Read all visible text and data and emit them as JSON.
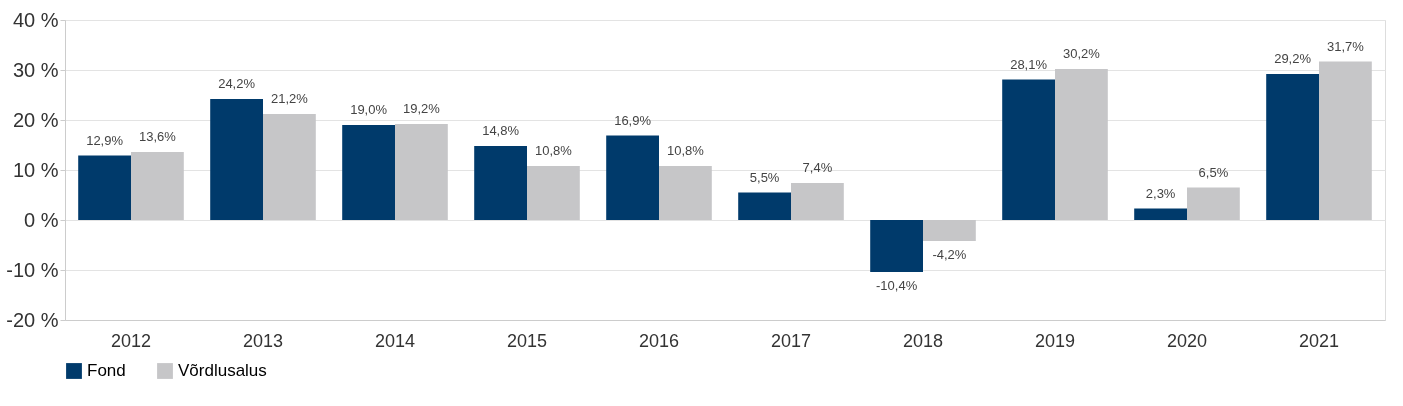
{
  "chart_data": {
    "type": "bar",
    "categories": [
      "2012",
      "2013",
      "2014",
      "2015",
      "2016",
      "2017",
      "2018",
      "2019",
      "2020",
      "2021"
    ],
    "series": [
      {
        "name": "Fond",
        "color": "#003a6b",
        "values": [
          12.9,
          24.2,
          19.0,
          14.8,
          16.9,
          5.5,
          -10.4,
          28.1,
          2.3,
          29.2
        ],
        "value_labels": [
          "12,9%",
          "24,2%",
          "19,0%",
          "14,8%",
          "16,9%",
          "5,5%",
          "-10,4%",
          "28,1%",
          "2,3%",
          "29,2%"
        ]
      },
      {
        "name": "Võrdlusalus",
        "color": "#c6c6c8",
        "values": [
          13.6,
          21.2,
          19.2,
          10.8,
          10.8,
          7.4,
          -4.2,
          30.2,
          6.5,
          31.7
        ],
        "value_labels": [
          "13,6%",
          "21,2%",
          "19,2%",
          "10,8%",
          "10,8%",
          "7,4%",
          "-4,2%",
          "30,2%",
          "6,5%",
          "31,7%"
        ]
      }
    ],
    "ylim": [
      -20,
      40
    ],
    "yticks": [
      {
        "value": -20,
        "label": "-20 %"
      },
      {
        "value": -10,
        "label": "-10 %"
      },
      {
        "value": 0,
        "label": "0 %"
      },
      {
        "value": 10,
        "label": "10 %"
      },
      {
        "value": 20,
        "label": "20 %"
      },
      {
        "value": 30,
        "label": "30 %"
      },
      {
        "value": 40,
        "label": "40 %"
      }
    ],
    "grid": "y",
    "legend": "bottom"
  }
}
